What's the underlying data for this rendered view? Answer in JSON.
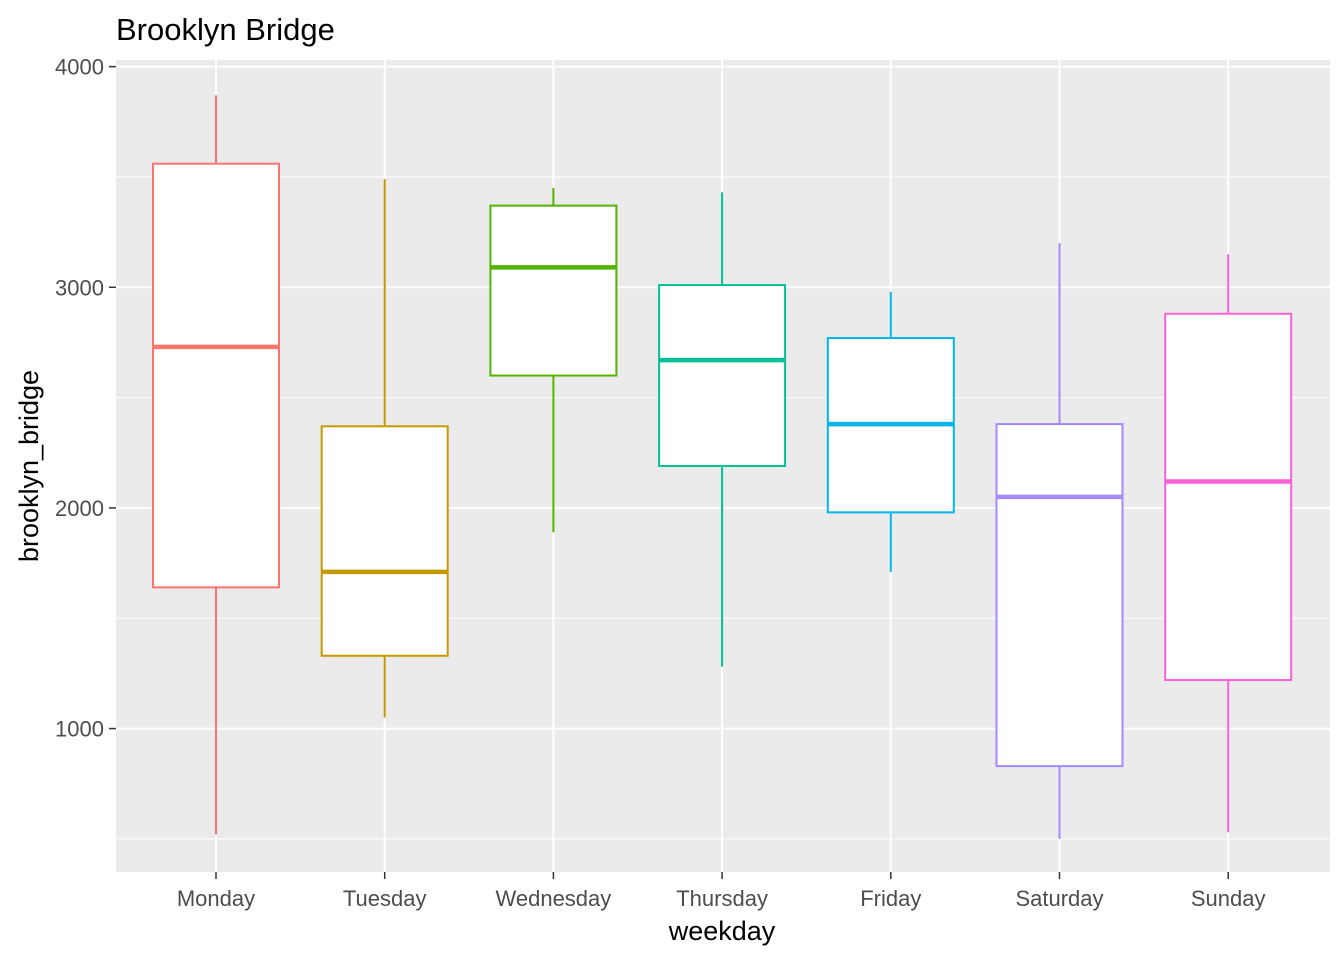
{
  "chart_data": {
    "type": "boxplot",
    "title": "Brooklyn Bridge",
    "xlabel": "weekday",
    "ylabel": "brooklyn_bridge",
    "ylim": [
      350,
      4030
    ],
    "yticks": [
      1000,
      2000,
      3000,
      4000
    ],
    "grid": true,
    "legend": "none",
    "categories": [
      "Monday",
      "Tuesday",
      "Wednesday",
      "Thursday",
      "Friday",
      "Saturday",
      "Sunday"
    ],
    "boxes": [
      {
        "category": "Monday",
        "min": 520,
        "q1": 1640,
        "median": 2730,
        "q3": 3560,
        "max": 3870,
        "color": "#F8766D"
      },
      {
        "category": "Tuesday",
        "min": 1050,
        "q1": 1330,
        "median": 1710,
        "q3": 2370,
        "max": 3490,
        "color": "#C49A00"
      },
      {
        "category": "Wednesday",
        "min": 1890,
        "q1": 2600,
        "median": 3090,
        "q3": 3370,
        "max": 3450,
        "color": "#53B400"
      },
      {
        "category": "Thursday",
        "min": 1280,
        "q1": 2190,
        "median": 2670,
        "q3": 3010,
        "max": 3430,
        "color": "#00C094"
      },
      {
        "category": "Friday",
        "min": 1710,
        "q1": 1980,
        "median": 2380,
        "q3": 2770,
        "max": 2980,
        "color": "#00B6EB"
      },
      {
        "category": "Saturday",
        "min": 500,
        "q1": 830,
        "median": 2050,
        "q3": 2380,
        "max": 3200,
        "color": "#A58AFF"
      },
      {
        "category": "Sunday",
        "min": 530,
        "q1": 1220,
        "median": 2120,
        "q3": 2880,
        "max": 3150,
        "color": "#FB61D7"
      }
    ]
  }
}
